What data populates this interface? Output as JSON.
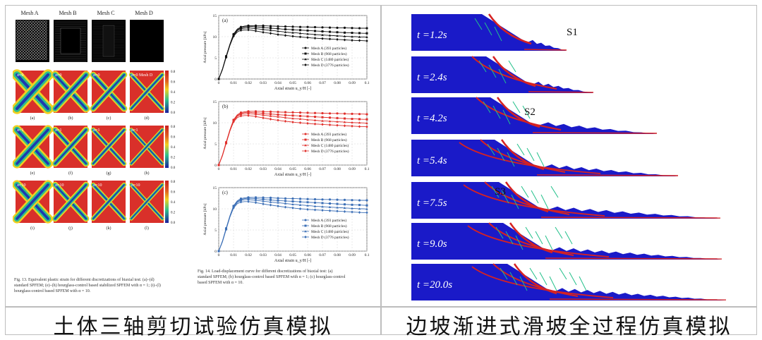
{
  "left_panel": {
    "caption": "土体三轴剪切试验仿真模拟",
    "fig13": {
      "mesh_headers": [
        "Mesh A",
        "Mesh B",
        "Mesh C",
        "Mesh D"
      ],
      "row_alpha": [
        "α=0",
        "α=1",
        "α=10"
      ],
      "alpha_row0": [
        "α=0",
        "α=0",
        "α=0",
        "α=0 Mesh D"
      ],
      "panel_labels": [
        "(a)",
        "(b)",
        "(c)",
        "(d)",
        "(e)",
        "(f)",
        "(g)",
        "(h)",
        "(i)",
        "(j)",
        "(k)",
        "(l)"
      ],
      "colorbar_ticks": [
        "0.8",
        "0.6",
        "0.4",
        "0.2",
        "0.0"
      ],
      "caption_line1": "Fig. 13.  Equivalent plastic strain for different discretizations of biaxial test: (a)–(d)",
      "caption_line2": "standard SPFEM; (e)–(h) hourglass-control based stabilized SPFEM with α = 1; (i)–(l)",
      "caption_line3": "hourglass-control based SPFEM with α = 10."
    },
    "fig14": {
      "caption_line1": "Fig. 14.  Load-displacement curve for different discretizations of biaxial test: (a)",
      "caption_line2": "standard SPFEM; (b) hourglass-control based SPFEM with α = 1; (c) hourglass-control",
      "caption_line3": "based SPFEM with α = 10.",
      "subplots": [
        {
          "label": "(a)",
          "color": "#111111"
        },
        {
          "label": "(b)",
          "color": "#e0302c"
        },
        {
          "label": "(c)",
          "color": "#3c6fb6"
        }
      ],
      "ylabel": "Axial pressure [kPa]",
      "xlabel": "Axial strain u_y/H  [-]",
      "yticks": [
        "0",
        "5",
        "10",
        "15"
      ],
      "xticks": [
        "0",
        "0.01",
        "0.02",
        "0.03",
        "0.04",
        "0.05",
        "0.06",
        "0.07",
        "0.08",
        "0.09",
        "0.1"
      ],
      "legend": [
        "Mesh A (393 particles)",
        "Mesh B (968 particles)",
        "Mesh C (1480 particles)",
        "Mesh D (3776 particles)"
      ]
    }
  },
  "chart_data": [
    {
      "type": "line",
      "title": "(a)",
      "xlabel": "Axial strain u_y/H [-]",
      "ylabel": "Axial pressure [kPa]",
      "xlim": [
        0,
        0.1
      ],
      "ylim": [
        0,
        15
      ],
      "x": [
        0,
        0.0025,
        0.005,
        0.0075,
        0.01,
        0.0125,
        0.015,
        0.0175,
        0.02,
        0.0225,
        0.025,
        0.0275,
        0.03,
        0.0325,
        0.035,
        0.0375,
        0.04,
        0.0425,
        0.045,
        0.0475,
        0.05,
        0.0525,
        0.055,
        0.0575,
        0.06,
        0.0625,
        0.065,
        0.0675,
        0.07,
        0.0725,
        0.075,
        0.0775,
        0.08,
        0.0825,
        0.085,
        0.0875,
        0.09,
        0.0925,
        0.095,
        0.0975,
        0.1
      ],
      "series": [
        {
          "name": "Mesh A (393 particles)",
          "values": [
            0,
            2.4,
            5.4,
            8.2,
            10.6,
            11.8,
            12.3,
            12.5,
            12.6,
            12.6,
            12.6,
            12.6,
            12.6,
            12.55,
            12.5,
            12.5,
            12.45,
            12.45,
            12.4,
            12.4,
            12.35,
            12.35,
            12.3,
            12.3,
            12.3,
            12.25,
            12.25,
            12.2,
            12.2,
            12.2,
            12.15,
            12.15,
            12.1,
            12.1,
            12.1,
            12.05,
            12.05,
            12.0,
            12.0,
            12.0,
            12.0
          ]
        },
        {
          "name": "Mesh B (968 particles)",
          "values": [
            0,
            2.3,
            5.3,
            8.1,
            10.5,
            11.6,
            12.1,
            12.3,
            12.4,
            12.4,
            12.3,
            12.25,
            12.2,
            12.1,
            12.0,
            11.95,
            11.9,
            11.8,
            11.75,
            11.7,
            11.65,
            11.6,
            11.55,
            11.5,
            11.45,
            11.4,
            11.35,
            11.3,
            11.25,
            11.2,
            11.15,
            11.1,
            11.05,
            11.0,
            10.95,
            10.9,
            10.9,
            10.85,
            10.85,
            10.8,
            10.8
          ]
        },
        {
          "name": "Mesh C (1480 particles)",
          "values": [
            0,
            2.3,
            5.2,
            8.0,
            10.3,
            11.4,
            11.9,
            12.0,
            12.1,
            12.0,
            11.9,
            11.8,
            11.7,
            11.6,
            11.5,
            11.4,
            11.3,
            11.2,
            11.1,
            11.0,
            10.95,
            10.9,
            10.8,
            10.7,
            10.65,
            10.6,
            10.5,
            10.45,
            10.4,
            10.35,
            10.3,
            10.25,
            10.2,
            10.15,
            10.1,
            10.05,
            10.0,
            10.0,
            9.95,
            9.9,
            9.9
          ]
        },
        {
          "name": "Mesh D (3776 particles)",
          "values": [
            0,
            2.2,
            5.1,
            7.9,
            10.1,
            11.1,
            11.5,
            11.6,
            11.6,
            11.5,
            11.35,
            11.2,
            11.05,
            10.9,
            10.8,
            10.65,
            10.5,
            10.4,
            10.3,
            10.2,
            10.1,
            10.0,
            9.95,
            9.85,
            9.8,
            9.7,
            9.65,
            9.6,
            9.55,
            9.5,
            9.45,
            9.4,
            9.35,
            9.3,
            9.25,
            9.2,
            9.15,
            9.1,
            9.1,
            9.05,
            9.0
          ]
        }
      ]
    },
    {
      "type": "line",
      "title": "(b)",
      "xlabel": "Axial strain u_y/H [-]",
      "ylabel": "Axial pressure [kPa]",
      "xlim": [
        0,
        0.1
      ],
      "ylim": [
        0,
        15
      ],
      "x": [
        0,
        0.0025,
        0.005,
        0.0075,
        0.01,
        0.0125,
        0.015,
        0.0175,
        0.02,
        0.0225,
        0.025,
        0.0275,
        0.03,
        0.0325,
        0.035,
        0.0375,
        0.04,
        0.0425,
        0.045,
        0.0475,
        0.05,
        0.0525,
        0.055,
        0.0575,
        0.06,
        0.0625,
        0.065,
        0.0675,
        0.07,
        0.0725,
        0.075,
        0.0775,
        0.08,
        0.0825,
        0.085,
        0.0875,
        0.09,
        0.0925,
        0.095,
        0.0975,
        0.1
      ],
      "series": [
        {
          "name": "Mesh A (393 particles)",
          "values": [
            0,
            2.4,
            5.4,
            8.3,
            10.7,
            11.9,
            12.4,
            12.6,
            12.7,
            12.7,
            12.7,
            12.7,
            12.65,
            12.6,
            12.6,
            12.55,
            12.55,
            12.5,
            12.5,
            12.45,
            12.45,
            12.4,
            12.4,
            12.35,
            12.35,
            12.3,
            12.3,
            12.3,
            12.25,
            12.25,
            12.2,
            12.2,
            12.2,
            12.15,
            12.15,
            12.1,
            12.1,
            12.1,
            12.05,
            12.05,
            12.0
          ]
        },
        {
          "name": "Mesh B (968 particles)",
          "values": [
            0,
            2.3,
            5.3,
            8.2,
            10.6,
            11.7,
            12.2,
            12.4,
            12.5,
            12.4,
            12.35,
            12.3,
            12.2,
            12.1,
            12.05,
            12.0,
            11.9,
            11.85,
            11.8,
            11.75,
            11.7,
            11.65,
            11.6,
            11.55,
            11.5,
            11.45,
            11.4,
            11.35,
            11.3,
            11.25,
            11.2,
            11.15,
            11.1,
            11.05,
            11.0,
            10.95,
            10.9,
            10.9,
            10.85,
            10.8,
            10.8
          ]
        },
        {
          "name": "Mesh C (1480 particles)",
          "values": [
            0,
            2.3,
            5.2,
            8.1,
            10.4,
            11.5,
            12.0,
            12.1,
            12.2,
            12.1,
            12.0,
            11.9,
            11.8,
            11.7,
            11.6,
            11.5,
            11.4,
            11.3,
            11.2,
            11.1,
            11.0,
            10.95,
            10.9,
            10.8,
            10.7,
            10.65,
            10.6,
            10.5,
            10.45,
            10.4,
            10.35,
            10.3,
            10.25,
            10.2,
            10.15,
            10.1,
            10.05,
            10.0,
            10.0,
            9.95,
            9.9
          ]
        },
        {
          "name": "Mesh D (3776 particles)",
          "values": [
            0,
            2.2,
            5.1,
            8.0,
            10.2,
            11.2,
            11.6,
            11.7,
            11.7,
            11.6,
            11.45,
            11.3,
            11.15,
            11.0,
            10.85,
            10.7,
            10.6,
            10.45,
            10.35,
            10.25,
            10.15,
            10.05,
            10.0,
            9.9,
            9.85,
            9.75,
            9.7,
            9.65,
            9.6,
            9.55,
            9.5,
            9.45,
            9.4,
            9.35,
            9.3,
            9.25,
            9.2,
            9.15,
            9.1,
            9.1,
            9.05
          ]
        }
      ]
    },
    {
      "type": "line",
      "title": "(c)",
      "xlabel": "Axial strain u_y/H [-]",
      "ylabel": "Axial pressure [kPa]",
      "xlim": [
        0,
        0.1
      ],
      "ylim": [
        0,
        15
      ],
      "x": [
        0,
        0.0025,
        0.005,
        0.0075,
        0.01,
        0.0125,
        0.015,
        0.0175,
        0.02,
        0.0225,
        0.025,
        0.0275,
        0.03,
        0.0325,
        0.035,
        0.0375,
        0.04,
        0.0425,
        0.045,
        0.0475,
        0.05,
        0.0525,
        0.055,
        0.0575,
        0.06,
        0.0625,
        0.065,
        0.0675,
        0.07,
        0.0725,
        0.075,
        0.0775,
        0.08,
        0.0825,
        0.085,
        0.0875,
        0.09,
        0.0925,
        0.095,
        0.0975,
        0.1
      ],
      "series": [
        {
          "name": "Mesh A (393 particles)",
          "values": [
            0,
            2.4,
            5.4,
            8.3,
            10.7,
            11.9,
            12.4,
            12.6,
            12.7,
            12.7,
            12.7,
            12.65,
            12.65,
            12.6,
            12.6,
            12.55,
            12.5,
            12.5,
            12.45,
            12.45,
            12.4,
            12.4,
            12.35,
            12.35,
            12.3,
            12.3,
            12.25,
            12.25,
            12.2,
            12.2,
            12.2,
            12.15,
            12.15,
            12.1,
            12.1,
            12.1,
            12.05,
            12.05,
            12.0,
            12.0,
            12.0
          ]
        },
        {
          "name": "Mesh B (968 particles)",
          "values": [
            0,
            2.3,
            5.3,
            8.2,
            10.6,
            11.7,
            12.2,
            12.4,
            12.5,
            12.45,
            12.4,
            12.3,
            12.25,
            12.15,
            12.1,
            12.0,
            11.95,
            11.9,
            11.85,
            11.8,
            11.75,
            11.7,
            11.65,
            11.6,
            11.55,
            11.5,
            11.45,
            11.4,
            11.35,
            11.3,
            11.25,
            11.2,
            11.15,
            11.1,
            11.05,
            11.0,
            10.95,
            10.95,
            10.9,
            10.85,
            10.8
          ]
        },
        {
          "name": "Mesh C (1480 particles)",
          "values": [
            0,
            2.3,
            5.2,
            8.1,
            10.4,
            11.5,
            12.0,
            12.15,
            12.2,
            12.1,
            12.0,
            11.9,
            11.8,
            11.7,
            11.6,
            11.5,
            11.45,
            11.35,
            11.25,
            11.15,
            11.05,
            11.0,
            10.9,
            10.85,
            10.75,
            10.7,
            10.6,
            10.55,
            10.5,
            10.45,
            10.4,
            10.35,
            10.3,
            10.25,
            10.2,
            10.15,
            10.1,
            10.05,
            10.0,
            10.0,
            9.95
          ]
        },
        {
          "name": "Mesh D (3776 particles)",
          "values": [
            0,
            2.2,
            5.1,
            8.0,
            10.2,
            11.2,
            11.6,
            11.7,
            11.7,
            11.6,
            11.45,
            11.3,
            11.15,
            11.0,
            10.9,
            10.75,
            10.65,
            10.5,
            10.4,
            10.3,
            10.2,
            10.1,
            10.0,
            9.95,
            9.85,
            9.8,
            9.75,
            9.7,
            9.65,
            9.6,
            9.55,
            9.5,
            9.45,
            9.4,
            9.35,
            9.3,
            9.25,
            9.2,
            9.15,
            9.1,
            9.1
          ]
        }
      ]
    }
  ],
  "right_panel": {
    "caption": "边坡渐进式滑坡全过程仿真模拟",
    "stages": [
      "S1",
      "S2",
      "S3"
    ],
    "frames": [
      {
        "t_label": "t =1.2s"
      },
      {
        "t_label": "t =2.4s"
      },
      {
        "t_label": "t =4.2s"
      },
      {
        "t_label": "t =5.4s"
      },
      {
        "t_label": "t =7.5s"
      },
      {
        "t_label": "t =9.0s"
      },
      {
        "t_label": "t =20.0s"
      }
    ],
    "colors": {
      "soil": "#1a1ac8",
      "shear": "#d62222",
      "transition": "#22c08a"
    }
  }
}
